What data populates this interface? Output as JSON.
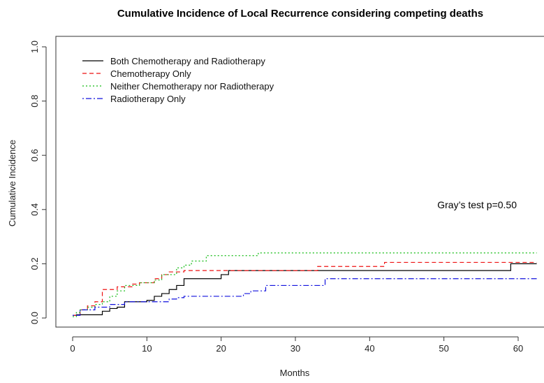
{
  "chart_data": {
    "type": "line",
    "title": "Cumulative Incidence of Local Recurrence considering competing deaths",
    "xlabel": "Months",
    "ylabel": "Cumulative Incidence",
    "xlim": [
      0,
      62
    ],
    "ylim": [
      0,
      1.0
    ],
    "x_ticks": [
      "0",
      "10",
      "20",
      "30",
      "40",
      "50",
      "60"
    ],
    "y_ticks": [
      "0.0",
      "0.2",
      "0.4",
      "0.6",
      "0.8",
      "1.0"
    ],
    "grid": false,
    "legend_position": "top-left",
    "annotation": "Gray’s test p=0.50",
    "series": [
      {
        "name": "Both Chemotherapy and Radiotherapy",
        "color": "#000000",
        "dash": "solid",
        "x": [
          0,
          0.5,
          4,
          5,
          6,
          7,
          10,
          11,
          12,
          13,
          14,
          15,
          20,
          21,
          59,
          62.5
        ],
        "y": [
          0.01,
          0.012,
          0.025,
          0.035,
          0.04,
          0.06,
          0.065,
          0.08,
          0.09,
          0.105,
          0.12,
          0.145,
          0.16,
          0.175,
          0.2,
          0.2
        ]
      },
      {
        "name": "Chemotherapy Only",
        "color": "#ee1111",
        "dash": "dashed",
        "x": [
          0,
          1,
          2,
          3,
          4,
          6,
          8,
          9,
          11,
          12,
          13,
          15,
          19,
          33,
          42,
          62.5
        ],
        "y": [
          0.01,
          0.03,
          0.045,
          0.06,
          0.105,
          0.115,
          0.125,
          0.13,
          0.145,
          0.16,
          0.17,
          0.175,
          0.175,
          0.19,
          0.205,
          0.205
        ]
      },
      {
        "name": "Neither Chemotherapy nor Radiotherapy",
        "color": "#11bb11",
        "dash": "dotted",
        "x": [
          0,
          0.5,
          1,
          2,
          3,
          4,
          5,
          6,
          7,
          9,
          11,
          12,
          14,
          15,
          16,
          18,
          25,
          62.5
        ],
        "y": [
          0.005,
          0.02,
          0.03,
          0.04,
          0.05,
          0.06,
          0.08,
          0.1,
          0.12,
          0.13,
          0.14,
          0.16,
          0.185,
          0.195,
          0.21,
          0.23,
          0.24,
          0.24
        ]
      },
      {
        "name": "Radiotherapy Only",
        "color": "#1111dd",
        "dash": "dotdash",
        "x": [
          0,
          1,
          3,
          5,
          7,
          13,
          14,
          15,
          23,
          24,
          26,
          34,
          62.5
        ],
        "y": [
          0.01,
          0.03,
          0.04,
          0.05,
          0.06,
          0.07,
          0.075,
          0.08,
          0.09,
          0.1,
          0.12,
          0.145,
          0.145
        ]
      }
    ]
  }
}
